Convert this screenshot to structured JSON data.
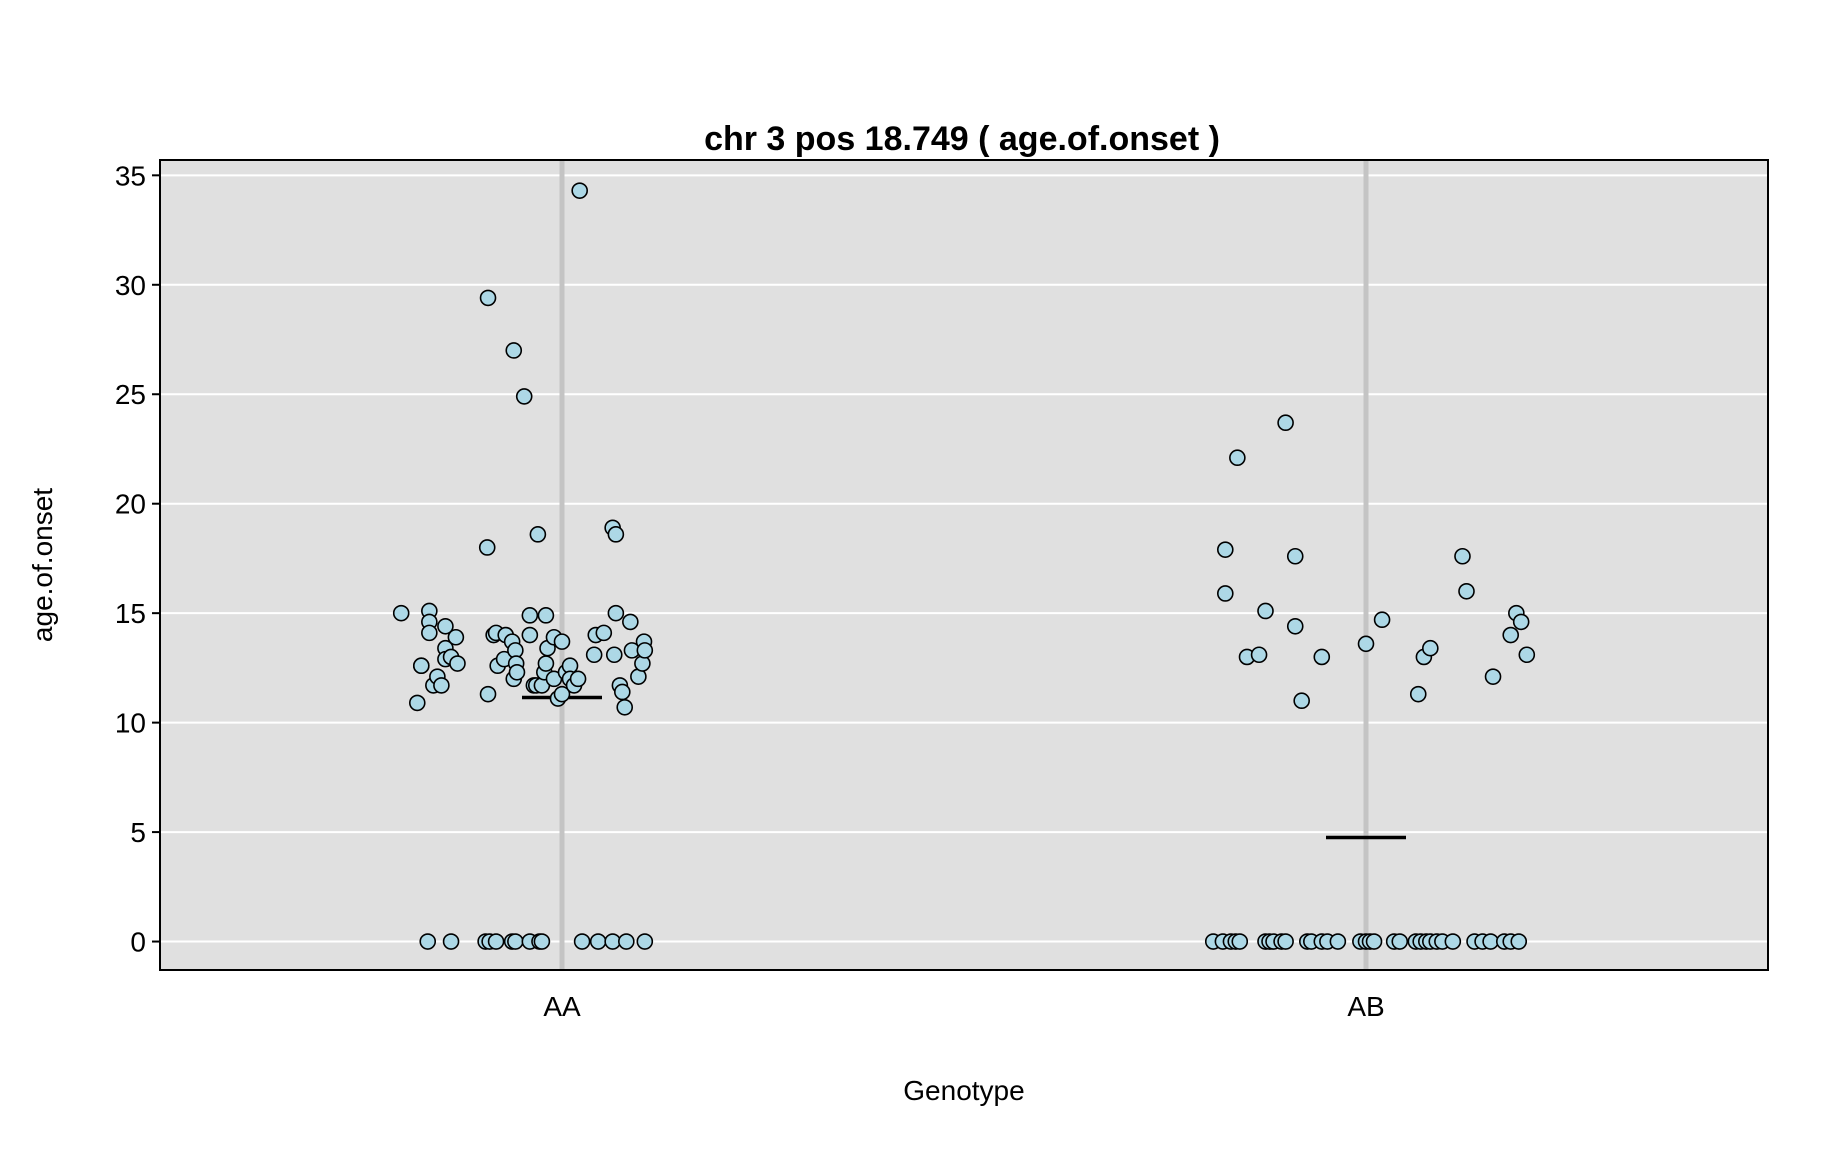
{
  "chart_data": {
    "type": "scatter",
    "title": "chr 3 pos 18.749 ( age.of.onset )",
    "xlabel": "Genotype",
    "ylabel": "age.of.onset",
    "categories": [
      "AA",
      "AB"
    ],
    "ylim": [
      -1.3,
      35.7
    ],
    "yticks": [
      0,
      5,
      10,
      15,
      20,
      25,
      30,
      35
    ],
    "grid": true,
    "colors": {
      "panel_bg": "#e0e0e0",
      "grid": "#ffffff",
      "category_line": "#c4c4c4",
      "point_fill": "#add8e6",
      "point_stroke": "#000000",
      "mean_line": "#000000"
    },
    "means": [
      11.15,
      4.75
    ],
    "series": [
      {
        "category": "AA",
        "points": [
          {
            "x": 0.8,
            "y": 15.0
          },
          {
            "x": 0.82,
            "y": 10.9
          },
          {
            "x": 0.825,
            "y": 12.6
          },
          {
            "x": 0.825,
            "y": 12.6
          },
          {
            "x": 0.835,
            "y": 15.1
          },
          {
            "x": 0.835,
            "y": 14.6
          },
          {
            "x": 0.835,
            "y": 14.1
          },
          {
            "x": 0.84,
            "y": 11.7
          },
          {
            "x": 0.845,
            "y": 12.1
          },
          {
            "x": 0.85,
            "y": 11.7
          },
          {
            "x": 0.855,
            "y": 13.4
          },
          {
            "x": 0.855,
            "y": 12.9
          },
          {
            "x": 0.855,
            "y": 14.4
          },
          {
            "x": 0.862,
            "y": 13.0
          },
          {
            "x": 0.868,
            "y": 13.9
          },
          {
            "x": 0.87,
            "y": 12.7
          },
          {
            "x": 0.907,
            "y": 18.0
          },
          {
            "x": 0.908,
            "y": 29.4
          },
          {
            "x": 0.908,
            "y": 11.3
          },
          {
            "x": 0.915,
            "y": 14.0
          },
          {
            "x": 0.918,
            "y": 14.1
          },
          {
            "x": 0.92,
            "y": 12.6
          },
          {
            "x": 0.928,
            "y": 12.9
          },
          {
            "x": 0.93,
            "y": 14.0
          },
          {
            "x": 0.938,
            "y": 13.7
          },
          {
            "x": 0.94,
            "y": 27.0
          },
          {
            "x": 0.94,
            "y": 12.0
          },
          {
            "x": 0.942,
            "y": 13.3
          },
          {
            "x": 0.943,
            "y": 12.7
          },
          {
            "x": 0.944,
            "y": 12.3
          },
          {
            "x": 0.953,
            "y": 24.9
          },
          {
            "x": 0.96,
            "y": 14.9
          },
          {
            "x": 0.96,
            "y": 14.0
          },
          {
            "x": 0.965,
            "y": 11.7
          },
          {
            "x": 0.968,
            "y": 11.7
          },
          {
            "x": 0.975,
            "y": 11.7
          },
          {
            "x": 0.978,
            "y": 12.3
          },
          {
            "x": 0.97,
            "y": 18.6
          },
          {
            "x": 0.98,
            "y": 12.7
          },
          {
            "x": 0.98,
            "y": 14.9
          },
          {
            "x": 0.982,
            "y": 13.4
          },
          {
            "x": 0.99,
            "y": 13.9
          },
          {
            "x": 0.99,
            "y": 12.0
          },
          {
            "x": 0.995,
            "y": 11.1
          },
          {
            "x": 1.0,
            "y": 11.3
          },
          {
            "x": 1.0,
            "y": 13.7
          },
          {
            "x": 1.005,
            "y": 12.3
          },
          {
            "x": 1.01,
            "y": 12.6
          },
          {
            "x": 1.01,
            "y": 12.0
          },
          {
            "x": 1.015,
            "y": 11.7
          },
          {
            "x": 1.02,
            "y": 12.0
          },
          {
            "x": 1.022,
            "y": 34.3
          },
          {
            "x": 1.04,
            "y": 13.1
          },
          {
            "x": 1.042,
            "y": 14.0
          },
          {
            "x": 1.052,
            "y": 14.1
          },
          {
            "x": 1.063,
            "y": 18.9
          },
          {
            "x": 1.065,
            "y": 13.1
          },
          {
            "x": 1.067,
            "y": 18.6
          },
          {
            "x": 1.067,
            "y": 15.0
          },
          {
            "x": 1.072,
            "y": 11.7
          },
          {
            "x": 1.075,
            "y": 11.4
          },
          {
            "x": 1.078,
            "y": 10.7
          },
          {
            "x": 1.085,
            "y": 14.6
          },
          {
            "x": 1.087,
            "y": 13.3
          },
          {
            "x": 1.095,
            "y": 12.1
          },
          {
            "x": 1.1,
            "y": 12.7
          },
          {
            "x": 1.102,
            "y": 13.7
          },
          {
            "x": 1.103,
            "y": 13.3
          },
          {
            "x": 0.833,
            "y": 0
          },
          {
            "x": 0.862,
            "y": 0
          },
          {
            "x": 0.905,
            "y": 0
          },
          {
            "x": 0.91,
            "y": 0
          },
          {
            "x": 0.918,
            "y": 0
          },
          {
            "x": 0.938,
            "y": 0
          },
          {
            "x": 0.942,
            "y": 0
          },
          {
            "x": 0.96,
            "y": 0
          },
          {
            "x": 0.972,
            "y": 0
          },
          {
            "x": 0.975,
            "y": 0
          },
          {
            "x": 1.025,
            "y": 0
          },
          {
            "x": 1.045,
            "y": 0
          },
          {
            "x": 1.063,
            "y": 0
          },
          {
            "x": 1.08,
            "y": 0
          },
          {
            "x": 1.103,
            "y": 0
          }
        ]
      },
      {
        "category": "AB",
        "points": [
          {
            "x": 1.825,
            "y": 17.9
          },
          {
            "x": 1.825,
            "y": 15.9
          },
          {
            "x": 1.84,
            "y": 22.1
          },
          {
            "x": 1.852,
            "y": 13.0
          },
          {
            "x": 1.867,
            "y": 13.1
          },
          {
            "x": 1.875,
            "y": 15.1
          },
          {
            "x": 1.9,
            "y": 23.7
          },
          {
            "x": 1.912,
            "y": 17.6
          },
          {
            "x": 1.912,
            "y": 14.4
          },
          {
            "x": 1.92,
            "y": 11.0
          },
          {
            "x": 1.945,
            "y": 13.0
          },
          {
            "x": 2.0,
            "y": 13.6
          },
          {
            "x": 2.02,
            "y": 14.7
          },
          {
            "x": 2.065,
            "y": 11.3
          },
          {
            "x": 2.072,
            "y": 13.0
          },
          {
            "x": 2.08,
            "y": 13.4
          },
          {
            "x": 2.12,
            "y": 17.6
          },
          {
            "x": 2.125,
            "y": 16.0
          },
          {
            "x": 2.158,
            "y": 12.1
          },
          {
            "x": 2.18,
            "y": 14.0
          },
          {
            "x": 2.187,
            "y": 15.0
          },
          {
            "x": 2.193,
            "y": 14.6
          },
          {
            "x": 2.2,
            "y": 13.1
          },
          {
            "x": 1.81,
            "y": 0
          },
          {
            "x": 1.822,
            "y": 0
          },
          {
            "x": 1.832,
            "y": 0
          },
          {
            "x": 1.838,
            "y": 0
          },
          {
            "x": 1.843,
            "y": 0
          },
          {
            "x": 1.875,
            "y": 0
          },
          {
            "x": 1.88,
            "y": 0
          },
          {
            "x": 1.885,
            "y": 0
          },
          {
            "x": 1.895,
            "y": 0
          },
          {
            "x": 1.9,
            "y": 0
          },
          {
            "x": 1.927,
            "y": 0
          },
          {
            "x": 1.932,
            "y": 0
          },
          {
            "x": 1.945,
            "y": 0
          },
          {
            "x": 1.952,
            "y": 0
          },
          {
            "x": 1.965,
            "y": 0
          },
          {
            "x": 1.993,
            "y": 0
          },
          {
            "x": 2.0,
            "y": 0
          },
          {
            "x": 2.005,
            "y": 0
          },
          {
            "x": 2.01,
            "y": 0
          },
          {
            "x": 2.035,
            "y": 0
          },
          {
            "x": 2.042,
            "y": 0
          },
          {
            "x": 2.062,
            "y": 0
          },
          {
            "x": 2.068,
            "y": 0
          },
          {
            "x": 2.075,
            "y": 0
          },
          {
            "x": 2.08,
            "y": 0
          },
          {
            "x": 2.088,
            "y": 0
          },
          {
            "x": 2.095,
            "y": 0
          },
          {
            "x": 2.108,
            "y": 0
          },
          {
            "x": 2.135,
            "y": 0
          },
          {
            "x": 2.145,
            "y": 0
          },
          {
            "x": 2.155,
            "y": 0
          },
          {
            "x": 2.172,
            "y": 0
          },
          {
            "x": 2.18,
            "y": 0
          },
          {
            "x": 2.19,
            "y": 0
          }
        ]
      }
    ]
  }
}
